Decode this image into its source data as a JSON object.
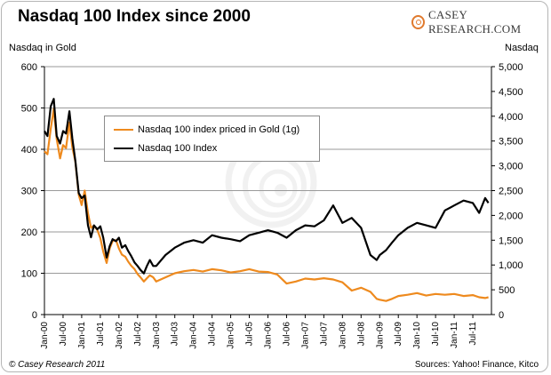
{
  "header": {
    "title": "Nasdaq 100 Index since 2000",
    "logo_text": "CASEY RESEARCH.COM"
  },
  "footer": {
    "copyright": "© Casey Research 2011",
    "sources": "Sources: Yahoo! Finance, Kitco"
  },
  "colors": {
    "gold_series": "#ee8a1e",
    "index_series": "#000000",
    "grid": "#9a9a9a",
    "logo_accent": "#e07a2e"
  },
  "chart_data": {
    "type": "line",
    "title": "Nasdaq 100 Index since 2000",
    "ylabel_left": "Nasdaq in Gold",
    "ylabel_right": "Nasdaq",
    "ylim_left": [
      0,
      600
    ],
    "ylim_right": [
      0,
      5000
    ],
    "yticks_left": [
      "0",
      "100",
      "200",
      "300",
      "400",
      "500",
      "600"
    ],
    "yticks_right": [
      "0",
      "500",
      "1,000",
      "1,500",
      "2,000",
      "2,500",
      "3,000",
      "3,500",
      "4,000",
      "4,500",
      "5,000"
    ],
    "xticks": [
      "Jan-00",
      "Jul-00",
      "Jan-01",
      "Jul-01",
      "Jan-02",
      "Jul-02",
      "Jan-03",
      "Jul-03",
      "Jan-04",
      "Jul-04",
      "Jan-05",
      "Jul-05",
      "Jan-06",
      "Jul-06",
      "Jan-07",
      "Jul-07",
      "Jan-08",
      "Jul-08",
      "Jan-09",
      "Jul-09",
      "Jan-10",
      "Jul-10",
      "Jan-11",
      "Jul-11"
    ],
    "grid": true,
    "legend_position": "upper-left",
    "series": [
      {
        "name": "Nasdaq 100 index priced in Gold (1g)",
        "axis": "left",
        "x": [
          2000.0,
          2000.08,
          2000.17,
          2000.25,
          2000.33,
          2000.42,
          2000.5,
          2000.58,
          2000.67,
          2000.75,
          2000.83,
          2000.92,
          2001.0,
          2001.08,
          2001.17,
          2001.25,
          2001.33,
          2001.42,
          2001.5,
          2001.58,
          2001.67,
          2001.75,
          2001.83,
          2001.92,
          2002.0,
          2002.08,
          2002.17,
          2002.25,
          2002.33,
          2002.42,
          2002.5,
          2002.58,
          2002.67,
          2002.75,
          2002.83,
          2002.92,
          2003.0,
          2003.25,
          2003.5,
          2003.75,
          2004.0,
          2004.25,
          2004.5,
          2004.75,
          2005.0,
          2005.25,
          2005.5,
          2005.75,
          2006.0,
          2006.25,
          2006.5,
          2006.75,
          2007.0,
          2007.25,
          2007.5,
          2007.75,
          2008.0,
          2008.25,
          2008.5,
          2008.75,
          2008.92,
          2009.0,
          2009.17,
          2009.33,
          2009.5,
          2009.75,
          2010.0,
          2010.25,
          2010.5,
          2010.75,
          2011.0,
          2011.25,
          2011.5,
          2011.67,
          2011.83,
          2011.92
        ],
        "values": [
          395,
          388,
          450,
          498,
          425,
          378,
          410,
          403,
          465,
          405,
          370,
          290,
          265,
          300,
          245,
          210,
          215,
          205,
          185,
          152,
          125,
          160,
          178,
          180,
          160,
          145,
          140,
          128,
          118,
          110,
          98,
          90,
          80,
          88,
          95,
          90,
          80,
          90,
          100,
          105,
          108,
          104,
          110,
          107,
          102,
          105,
          110,
          104,
          103,
          97,
          75,
          80,
          87,
          85,
          88,
          85,
          78,
          58,
          65,
          55,
          38,
          36,
          33,
          38,
          45,
          48,
          52,
          46,
          50,
          48,
          50,
          45,
          47,
          42,
          40,
          42
        ]
      },
      {
        "name": "Nasdaq 100 Index",
        "axis": "right",
        "x": [
          2000.0,
          2000.08,
          2000.17,
          2000.25,
          2000.33,
          2000.42,
          2000.5,
          2000.58,
          2000.67,
          2000.75,
          2000.83,
          2000.92,
          2001.0,
          2001.08,
          2001.17,
          2001.25,
          2001.33,
          2001.42,
          2001.5,
          2001.58,
          2001.67,
          2001.75,
          2001.83,
          2001.92,
          2002.0,
          2002.08,
          2002.17,
          2002.25,
          2002.33,
          2002.42,
          2002.5,
          2002.58,
          2002.67,
          2002.75,
          2002.83,
          2002.92,
          2003.0,
          2003.25,
          2003.5,
          2003.75,
          2004.0,
          2004.25,
          2004.5,
          2004.75,
          2005.0,
          2005.25,
          2005.5,
          2005.75,
          2006.0,
          2006.25,
          2006.5,
          2006.75,
          2007.0,
          2007.25,
          2007.5,
          2007.75,
          2008.0,
          2008.25,
          2008.5,
          2008.75,
          2008.92,
          2009.0,
          2009.17,
          2009.33,
          2009.5,
          2009.75,
          2010.0,
          2010.25,
          2010.5,
          2010.75,
          2011.0,
          2011.25,
          2011.5,
          2011.67,
          2011.83,
          2011.92
        ],
        "values": [
          3700,
          3600,
          4200,
          4350,
          3600,
          3450,
          3700,
          3650,
          4100,
          3550,
          3100,
          2450,
          2350,
          2400,
          1800,
          1560,
          1800,
          1720,
          1780,
          1550,
          1150,
          1380,
          1520,
          1480,
          1550,
          1350,
          1400,
          1280,
          1180,
          1050,
          980,
          900,
          830,
          980,
          1100,
          980,
          980,
          1200,
          1350,
          1450,
          1500,
          1450,
          1600,
          1550,
          1520,
          1480,
          1600,
          1650,
          1700,
          1650,
          1550,
          1700,
          1800,
          1780,
          1900,
          2200,
          1850,
          1950,
          1750,
          1200,
          1100,
          1200,
          1300,
          1450,
          1600,
          1750,
          1850,
          1800,
          1750,
          2100,
          2200,
          2300,
          2250,
          2050,
          2350,
          2250
        ]
      }
    ]
  }
}
